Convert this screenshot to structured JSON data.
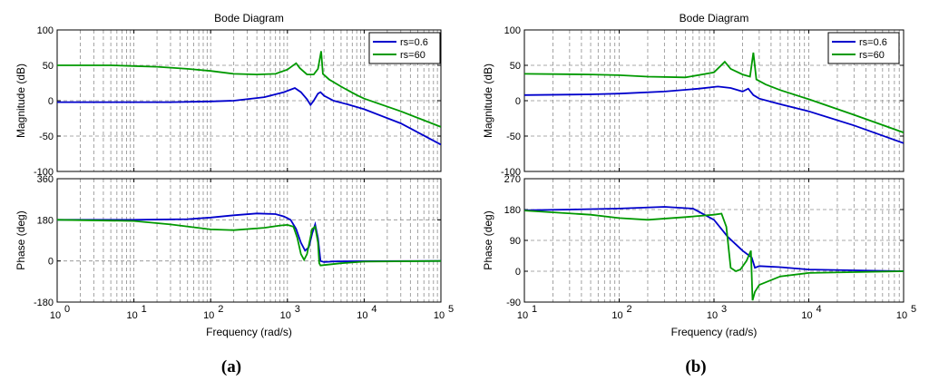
{
  "chart_data": [
    {
      "type": "line",
      "caption": "(a)",
      "title": "Bode Diagram",
      "xlabel": "Frequency  (rad/s)",
      "xscale": "log",
      "xlim": [
        1,
        100000
      ],
      "xticks": [
        1,
        10,
        100,
        1000,
        10000,
        100000
      ],
      "xtick_labels": [
        "10",
        "10",
        "10",
        "10",
        "10",
        "10"
      ],
      "xtick_exponents": [
        "0",
        "1",
        "2",
        "3",
        "4",
        "5"
      ],
      "legend": {
        "position": "top-right",
        "entries": [
          "rs=0.6",
          "rs=60"
        ],
        "colors": [
          "#0000cc",
          "#009900"
        ]
      },
      "magnitude": {
        "ylabel": "Magnitude (dB)",
        "ylim": [
          -100,
          100
        ],
        "yticks": [
          -100,
          -50,
          0,
          50,
          100
        ],
        "ytick_labels": [
          "-100",
          "-50",
          "0",
          "50",
          "100"
        ],
        "series": [
          {
            "name": "rs=0.6",
            "color": "#0000cc",
            "points": [
              [
                1,
                -2
              ],
              [
                3,
                -2
              ],
              [
                10,
                -2
              ],
              [
                30,
                -2
              ],
              [
                100,
                -1
              ],
              [
                200,
                0
              ],
              [
                500,
                5
              ],
              [
                900,
                12
              ],
              [
                1250,
                18
              ],
              [
                1500,
                12
              ],
              [
                1800,
                2
              ],
              [
                2000,
                -6
              ],
              [
                2200,
                0
              ],
              [
                2500,
                10
              ],
              [
                2700,
                12
              ],
              [
                3000,
                7
              ],
              [
                4000,
                0
              ],
              [
                6000,
                -5
              ],
              [
                10000,
                -12
              ],
              [
                30000,
                -32
              ],
              [
                100000,
                -62
              ]
            ]
          },
          {
            "name": "rs=60",
            "color": "#009900",
            "points": [
              [
                1,
                50
              ],
              [
                5,
                50
              ],
              [
                10,
                49
              ],
              [
                20,
                48
              ],
              [
                50,
                45
              ],
              [
                100,
                42
              ],
              [
                200,
                38
              ],
              [
                400,
                37
              ],
              [
                700,
                38
              ],
              [
                1000,
                44
              ],
              [
                1300,
                53
              ],
              [
                1450,
                46
              ],
              [
                1800,
                37
              ],
              [
                2200,
                37
              ],
              [
                2500,
                45
              ],
              [
                2750,
                70
              ],
              [
                2900,
                38
              ],
              [
                3500,
                30
              ],
              [
                5000,
                20
              ],
              [
                8000,
                8
              ],
              [
                10000,
                3
              ],
              [
                30000,
                -15
              ],
              [
                100000,
                -37
              ]
            ]
          }
        ]
      },
      "phase": {
        "ylabel": "Phase (deg)",
        "ylim": [
          -180,
          360
        ],
        "yticks": [
          -180,
          0,
          180,
          360
        ],
        "ytick_labels": [
          "-180",
          "0",
          "180",
          "360"
        ],
        "series": [
          {
            "name": "rs=0.6",
            "color": "#0000cc",
            "points": [
              [
                1,
                180
              ],
              [
                10,
                180
              ],
              [
                50,
                183
              ],
              [
                100,
                190
              ],
              [
                200,
                200
              ],
              [
                400,
                208
              ],
              [
                700,
                205
              ],
              [
                900,
                195
              ],
              [
                1100,
                180
              ],
              [
                1300,
                140
              ],
              [
                1500,
                80
              ],
              [
                1700,
                45
              ],
              [
                1900,
                60
              ],
              [
                2100,
                120
              ],
              [
                2300,
                160
              ],
              [
                2500,
                100
              ],
              [
                2700,
                0
              ],
              [
                3000,
                -5
              ],
              [
                4000,
                -2
              ],
              [
                10000,
                -1
              ],
              [
                100000,
                0
              ]
            ]
          },
          {
            "name": "rs=60",
            "color": "#009900",
            "points": [
              [
                1,
                180
              ],
              [
                10,
                175
              ],
              [
                30,
                160
              ],
              [
                100,
                138
              ],
              [
                200,
                135
              ],
              [
                500,
                145
              ],
              [
                800,
                155
              ],
              [
                1000,
                158
              ],
              [
                1200,
                150
              ],
              [
                1350,
                100
              ],
              [
                1500,
                30
              ],
              [
                1650,
                5
              ],
              [
                1800,
                30
              ],
              [
                2100,
                140
              ],
              [
                2300,
                150
              ],
              [
                2500,
                80
              ],
              [
                2600,
                -10
              ],
              [
                2700,
                -20
              ],
              [
                3000,
                -18
              ],
              [
                5000,
                -10
              ],
              [
                10000,
                -3
              ],
              [
                100000,
                0
              ]
            ]
          }
        ]
      }
    },
    {
      "type": "line",
      "caption": "(b)",
      "title": "Bode Diagram",
      "xlabel": "Frequency  (rad/s)",
      "xscale": "log",
      "xlim": [
        10,
        100000
      ],
      "xticks": [
        10,
        100,
        1000,
        10000,
        100000
      ],
      "xtick_labels": [
        "10",
        "10",
        "10",
        "10",
        "10"
      ],
      "xtick_exponents": [
        "1",
        "2",
        "3",
        "4",
        "5"
      ],
      "legend": {
        "position": "top-right",
        "entries": [
          "rs=0.6",
          "rs=60"
        ],
        "colors": [
          "#0000cc",
          "#009900"
        ]
      },
      "magnitude": {
        "ylabel": "Magnitude (dB)",
        "ylim": [
          -100,
          100
        ],
        "yticks": [
          -100,
          -50,
          0,
          50,
          100
        ],
        "ytick_labels": [
          "-100",
          "-50",
          "0",
          "50",
          "100"
        ],
        "series": [
          {
            "name": "rs=0.6",
            "color": "#0000cc",
            "points": [
              [
                10,
                8
              ],
              [
                50,
                9
              ],
              [
                100,
                10
              ],
              [
                300,
                13
              ],
              [
                700,
                17
              ],
              [
                1100,
                20
              ],
              [
                1500,
                18
              ],
              [
                2000,
                13
              ],
              [
                2300,
                17
              ],
              [
                2600,
                8
              ],
              [
                3000,
                3
              ],
              [
                5000,
                -5
              ],
              [
                10000,
                -15
              ],
              [
                30000,
                -35
              ],
              [
                100000,
                -60
              ]
            ]
          },
          {
            "name": "rs=60",
            "color": "#009900",
            "points": [
              [
                10,
                38
              ],
              [
                50,
                37
              ],
              [
                100,
                36
              ],
              [
                200,
                34
              ],
              [
                500,
                33
              ],
              [
                1000,
                40
              ],
              [
                1300,
                55
              ],
              [
                1500,
                45
              ],
              [
                2000,
                37
              ],
              [
                2400,
                34
              ],
              [
                2600,
                68
              ],
              [
                2800,
                30
              ],
              [
                3500,
                23
              ],
              [
                5000,
                15
              ],
              [
                10000,
                2
              ],
              [
                30000,
                -20
              ],
              [
                100000,
                -45
              ]
            ]
          }
        ]
      },
      "phase": {
        "ylabel": "Phase (deg)",
        "ylim": [
          -90,
          270
        ],
        "yticks": [
          -90,
          0,
          90,
          180,
          270
        ],
        "ytick_labels": [
          "-90",
          "0",
          "90",
          "180",
          "270"
        ],
        "series": [
          {
            "name": "rs=0.6",
            "color": "#0000cc",
            "points": [
              [
                10,
                178
              ],
              [
                30,
                180
              ],
              [
                100,
                183
              ],
              [
                300,
                188
              ],
              [
                600,
                183
              ],
              [
                1000,
                150
              ],
              [
                1400,
                100
              ],
              [
                2000,
                60
              ],
              [
                2500,
                40
              ],
              [
                2700,
                10
              ],
              [
                3000,
                15
              ],
              [
                5000,
                12
              ],
              [
                10000,
                5
              ],
              [
                100000,
                0
              ]
            ]
          },
          {
            "name": "rs=60",
            "color": "#009900",
            "points": [
              [
                10,
                177
              ],
              [
                50,
                165
              ],
              [
                100,
                155
              ],
              [
                200,
                150
              ],
              [
                500,
                158
              ],
              [
                1000,
                165
              ],
              [
                1200,
                168
              ],
              [
                1350,
                130
              ],
              [
                1500,
                10
              ],
              [
                1700,
                0
              ],
              [
                1900,
                5
              ],
              [
                2200,
                30
              ],
              [
                2450,
                60
              ],
              [
                2550,
                -85
              ],
              [
                2700,
                -60
              ],
              [
                3000,
                -40
              ],
              [
                5000,
                -15
              ],
              [
                10000,
                -5
              ],
              [
                100000,
                0
              ]
            ]
          }
        ]
      }
    }
  ]
}
